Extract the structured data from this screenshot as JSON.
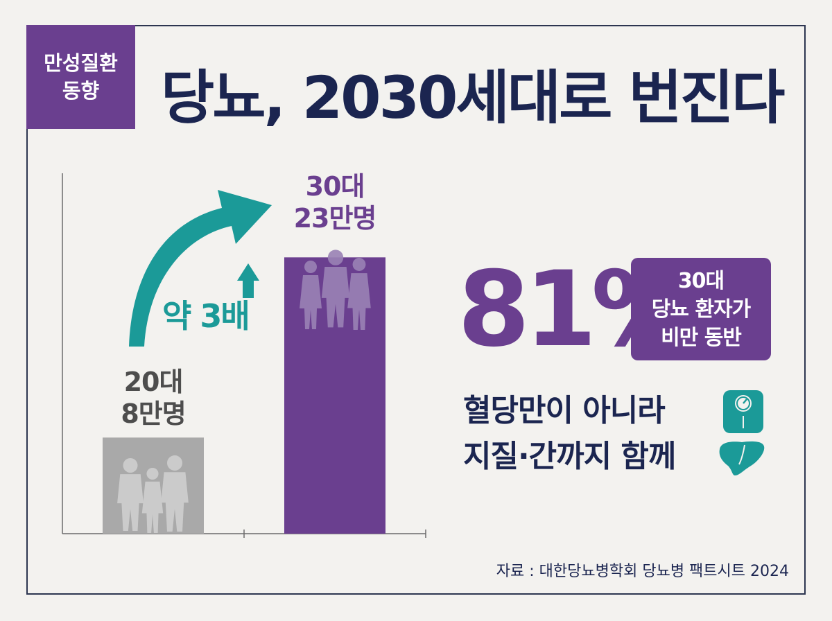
{
  "tag": {
    "line1": "만성질환",
    "line2": "동향"
  },
  "title": "당뇨, 2030세대로 번진다",
  "chart_data": {
    "type": "bar",
    "categories": [
      "20대",
      "30대"
    ],
    "values": [
      8,
      23
    ],
    "value_labels": [
      "8만명",
      "23만명"
    ],
    "ylim": [
      0,
      30
    ],
    "colors": [
      "#a9a9a9",
      "#6a3f8f"
    ],
    "annotation": "약 3배"
  },
  "stat": {
    "percent": "81%",
    "box_lines": [
      "30대",
      "당뇨 환자가",
      "비만 동반"
    ]
  },
  "note": {
    "line1": "혈당만이 아니라",
    "line2": "지질·간까지 함께"
  },
  "icons": {
    "scale": "scale-icon",
    "liver": "liver-icon"
  },
  "accent": {
    "teal": "#1b9a98",
    "purple": "#6a3f8f",
    "navy": "#1b2550"
  },
  "source": "자료 : 대한당뇨병학회 당뇨병 팩트시트 2024"
}
